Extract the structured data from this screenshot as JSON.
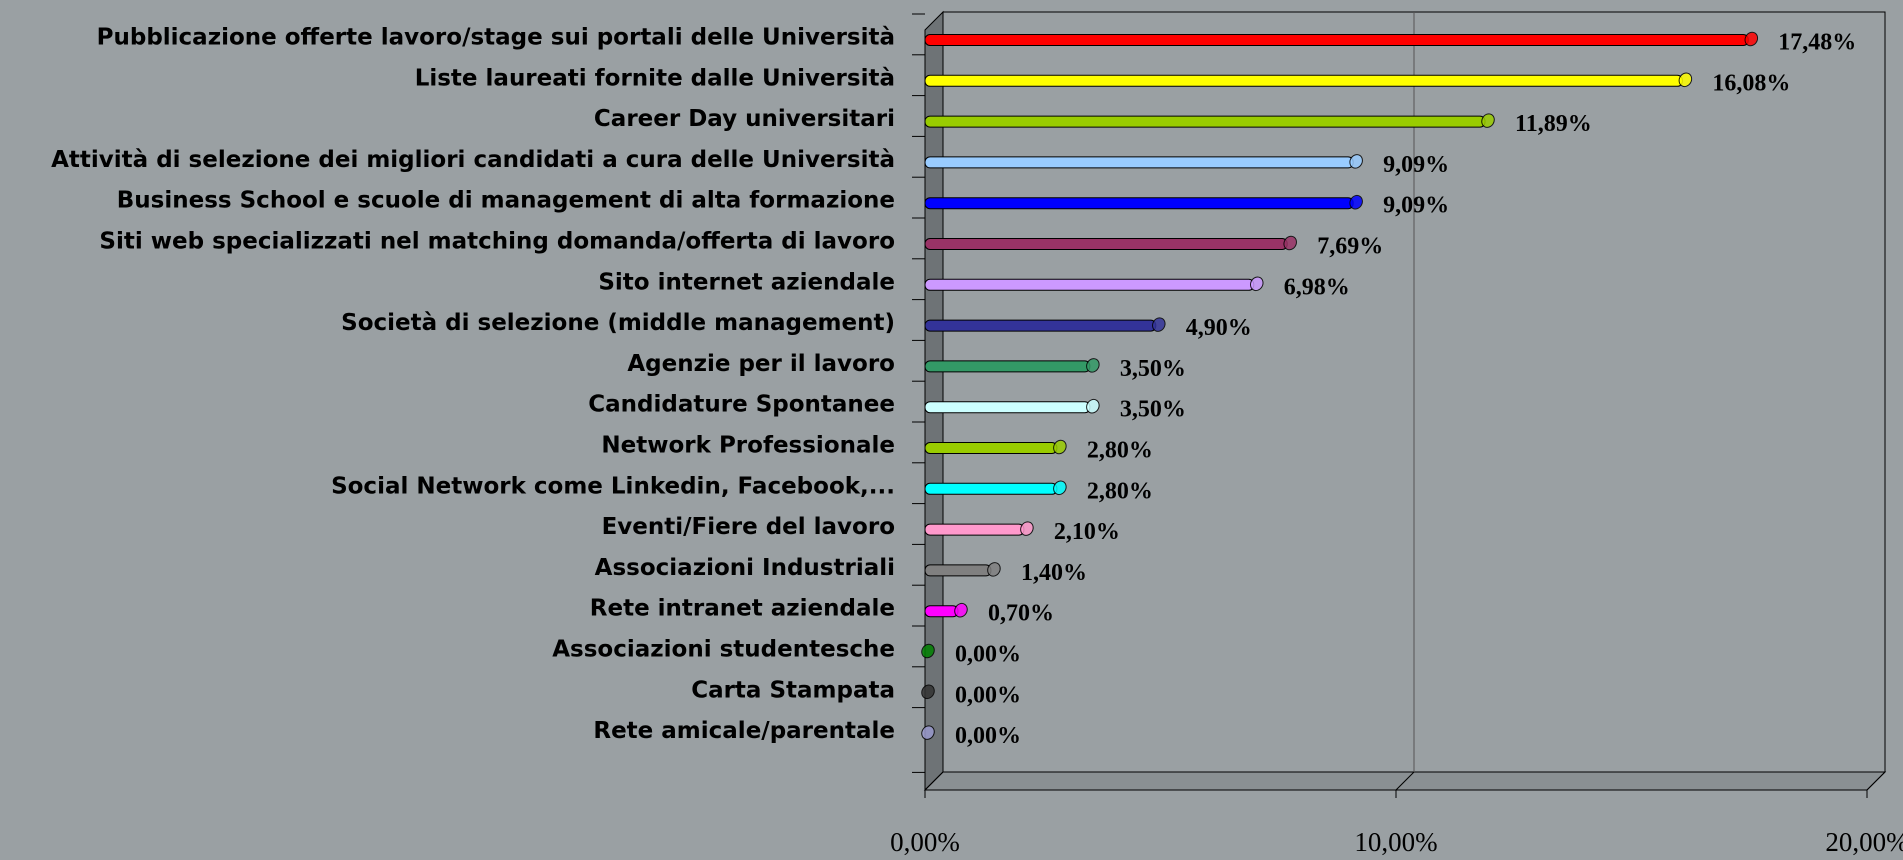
{
  "chart_data": {
    "type": "bar",
    "orientation": "horizontal",
    "categories": [
      "Pubblicazione offerte lavoro/stage sui portali delle Università",
      "Liste laureati fornite dalle Università",
      "Career Day universitari",
      "Attività di selezione dei migliori candidati a cura delle Università",
      "Business School e scuole di management di alta formazione",
      "Siti web specializzati nel matching domanda/offerta di lavoro",
      "Sito internet aziendale",
      "Società di selezione (middle management)",
      "Agenzie per il lavoro",
      "Candidature Spontanee",
      "Network Professionale",
      "Social Network come Linkedin, Facebook,...",
      "Eventi/Fiere del lavoro",
      "Associazioni Industriali",
      "Rete intranet aziendale",
      "Associazioni studentesche",
      "Carta Stampata",
      "Rete amicale/parentale"
    ],
    "values": [
      17.48,
      16.08,
      11.89,
      9.09,
      9.09,
      7.69,
      6.98,
      4.9,
      3.5,
      3.5,
      2.8,
      2.8,
      2.1,
      1.4,
      0.7,
      0.0,
      0.0,
      0.0
    ],
    "value_labels": [
      "17,48%",
      "16,08%",
      "11,89%",
      "9,09%",
      "9,09%",
      "7,69%",
      "6,98%",
      "4,90%",
      "3,50%",
      "3,50%",
      "2,80%",
      "2,80%",
      "2,10%",
      "1,40%",
      "0,70%",
      "0,00%",
      "0,00%",
      "0,00%"
    ],
    "colors": [
      "#ff0000",
      "#ffff00",
      "#99cc00",
      "#99ccff",
      "#0000ff",
      "#993366",
      "#cc99ff",
      "#333399",
      "#339966",
      "#ccffff",
      "#99cc00",
      "#00ffff",
      "#ff99cc",
      "#808080",
      "#ff00ff",
      "#008000",
      "#333333",
      "#9999cc"
    ],
    "xlim": [
      0,
      20
    ],
    "xticks": [
      {
        "value": 0,
        "label": "0,00%"
      },
      {
        "value": 10,
        "label": "10,00%"
      },
      {
        "value": 20,
        "label": "20,00%"
      }
    ],
    "grid": true
  }
}
